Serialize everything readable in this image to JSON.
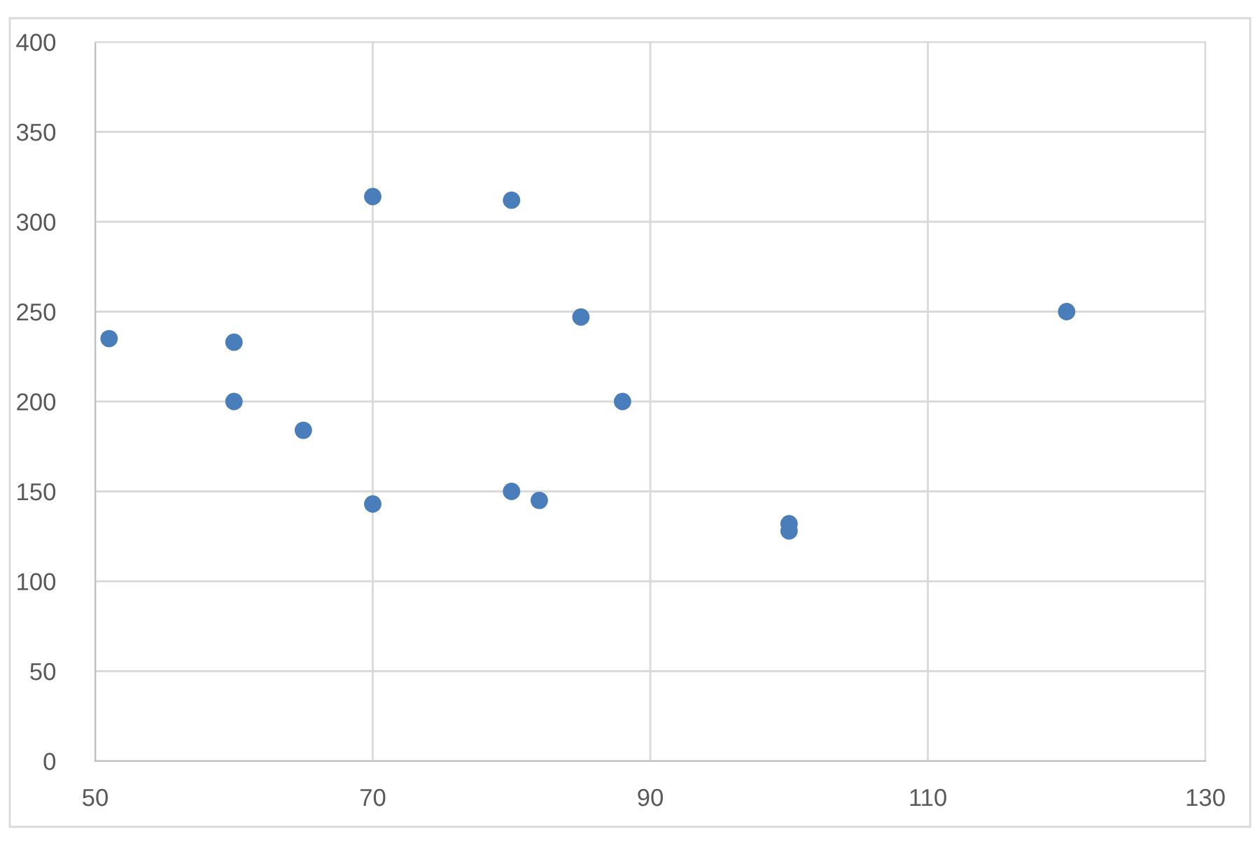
{
  "chart_data": {
    "type": "scatter",
    "x": [
      51,
      60,
      60,
      65,
      70,
      70,
      80,
      80,
      82,
      85,
      88,
      100,
      100,
      120
    ],
    "values": [
      235,
      233,
      200,
      184,
      314,
      143,
      312,
      150,
      145,
      247,
      200,
      132,
      128,
      250
    ],
    "color": "#4a7ebb",
    "marker": "circle",
    "xlim": [
      50,
      130
    ],
    "xticks": [
      50,
      70,
      90,
      110,
      130
    ],
    "ylim": [
      0,
      400
    ],
    "yticks": [
      0,
      50,
      100,
      150,
      200,
      250,
      300,
      350,
      400
    ],
    "grid": true
  }
}
